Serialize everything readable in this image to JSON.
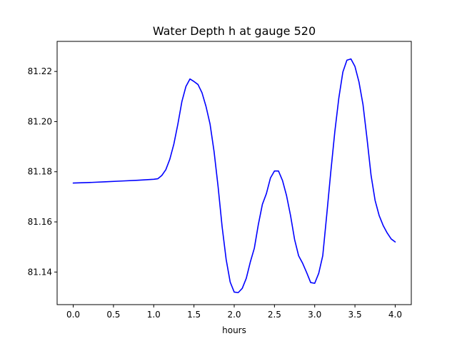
{
  "chart_data": {
    "type": "line",
    "title": "Water Depth h at gauge 520",
    "xlabel": "hours",
    "ylabel": "",
    "xlim": [
      -0.2,
      4.2
    ],
    "ylim": [
      81.127,
      81.232
    ],
    "xticks": [
      0.0,
      0.5,
      1.0,
      1.5,
      2.0,
      2.5,
      3.0,
      3.5,
      4.0
    ],
    "xtick_labels": [
      "0.0",
      "0.5",
      "1.0",
      "1.5",
      "2.0",
      "2.5",
      "3.0",
      "3.5",
      "4.0"
    ],
    "yticks": [
      81.14,
      81.16,
      81.18,
      81.2,
      81.22
    ],
    "ytick_labels": [
      "81.14",
      "81.16",
      "81.18",
      "81.20",
      "81.22"
    ],
    "grid": false,
    "legend": "none",
    "series": [
      {
        "color": "#0000ff",
        "x": [
          0.0,
          0.1,
          0.2,
          0.4,
          0.6,
          0.8,
          1.0,
          1.05,
          1.1,
          1.15,
          1.2,
          1.25,
          1.3,
          1.35,
          1.4,
          1.45,
          1.5,
          1.55,
          1.6,
          1.65,
          1.7,
          1.75,
          1.8,
          1.85,
          1.9,
          1.95,
          2.0,
          2.05,
          2.1,
          2.15,
          2.2,
          2.25,
          2.3,
          2.35,
          2.4,
          2.45,
          2.5,
          2.55,
          2.6,
          2.65,
          2.7,
          2.75,
          2.8,
          2.85,
          2.9,
          2.95,
          3.0,
          3.05,
          3.1,
          3.15,
          3.2,
          3.25,
          3.3,
          3.35,
          3.4,
          3.45,
          3.5,
          3.55,
          3.6,
          3.65,
          3.7,
          3.75,
          3.8,
          3.85,
          3.9,
          3.95,
          4.0
        ],
        "y": [
          81.1755,
          81.1756,
          81.1757,
          81.176,
          81.1763,
          81.1766,
          81.177,
          81.1772,
          81.1785,
          81.1808,
          81.185,
          81.191,
          81.199,
          81.208,
          81.214,
          81.217,
          81.216,
          81.2148,
          81.2115,
          81.206,
          81.199,
          81.188,
          81.174,
          81.158,
          81.145,
          81.136,
          81.132,
          81.1318,
          81.1335,
          81.1375,
          81.144,
          81.1495,
          81.159,
          81.167,
          81.1713,
          81.1775,
          81.1803,
          81.1803,
          81.1765,
          81.1705,
          81.1625,
          81.153,
          81.1465,
          81.1435,
          81.1398,
          81.1358,
          81.1355,
          81.1395,
          81.1465,
          81.163,
          81.18,
          81.196,
          81.2095,
          81.2198,
          81.2245,
          81.225,
          81.222,
          81.2158,
          81.2068,
          81.1932,
          81.1786,
          81.1686,
          81.1626,
          81.1586,
          81.1556,
          81.1532,
          81.152
        ]
      }
    ]
  }
}
